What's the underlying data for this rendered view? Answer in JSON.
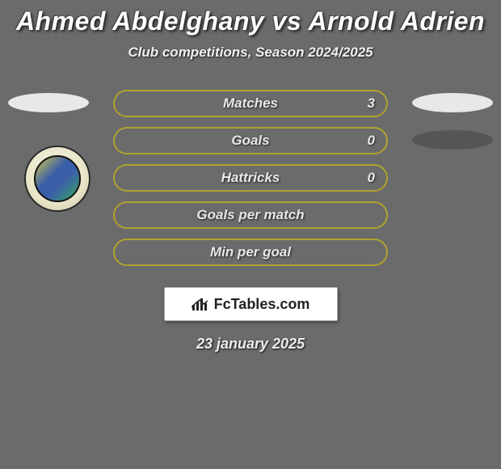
{
  "background_color": "#6b6b6b",
  "title": {
    "text": "Ahmed Abdelghany vs Arnold Adrien",
    "color": "#ffffff",
    "fontsize": 32
  },
  "subtitle": {
    "text": "Club competitions, Season 2024/2025",
    "color": "#f0f0f0",
    "fontsize": 17
  },
  "accent_color": "#b0a22e",
  "bar_border_color": "#b0a22e",
  "bar_fill_color": "rgba(0,0,0,0)",
  "label_color": "#e8e8e8",
  "ellipse_left_color": "#e8e8e8",
  "ellipse_right_color_1": "#e8e8e8",
  "ellipse_right_color_2": "#555555",
  "stats": [
    {
      "label": "Matches",
      "value": "3",
      "show_left_ellipse": true,
      "show_right_ellipse": true,
      "right_ellipse_dark": false
    },
    {
      "label": "Goals",
      "value": "0",
      "show_left_ellipse": false,
      "show_right_ellipse": true,
      "right_ellipse_dark": true
    },
    {
      "label": "Hattricks",
      "value": "0",
      "show_left_ellipse": false,
      "show_right_ellipse": false,
      "right_ellipse_dark": false
    },
    {
      "label": "Goals per match",
      "value": "",
      "show_left_ellipse": false,
      "show_right_ellipse": false,
      "right_ellipse_dark": false
    },
    {
      "label": "Min per goal",
      "value": "",
      "show_left_ellipse": false,
      "show_right_ellipse": false,
      "right_ellipse_dark": false
    }
  ],
  "branding": {
    "text": "FcTables.com",
    "color": "#222222"
  },
  "date": {
    "text": "23 january 2025",
    "color": "#eeeeee"
  }
}
